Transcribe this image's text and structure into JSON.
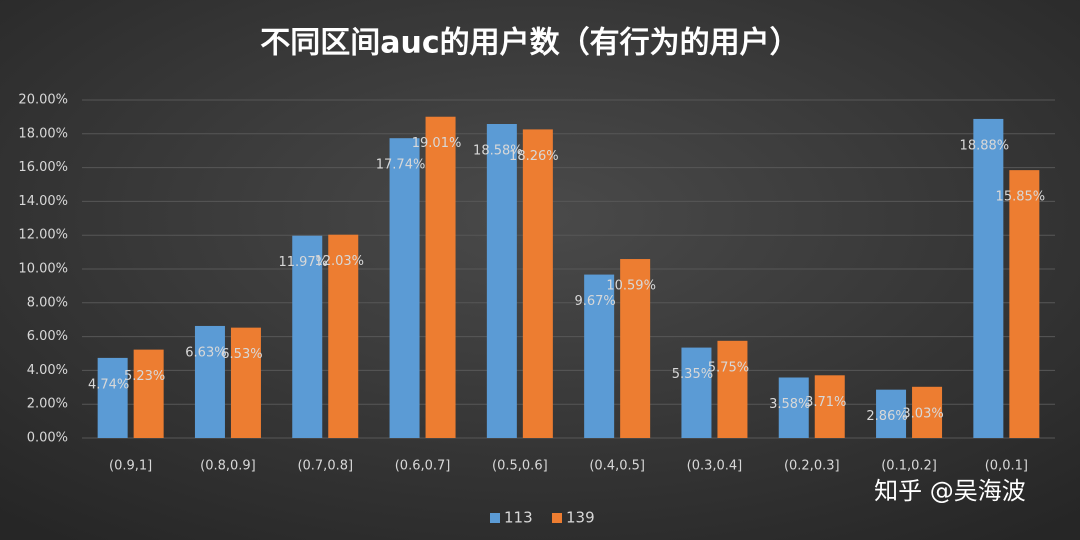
{
  "chart_data": {
    "type": "bar",
    "title": "不同区间auc的用户数（有行为的用户）",
    "categories": [
      "(0.9,1]",
      "(0.8,0.9]",
      "(0.7,0.8]",
      "(0.6,0.7]",
      "(0.5,0.6]",
      "(0.4,0.5]",
      "(0.3,0.4]",
      "(0.2,0.3]",
      "(0.1,0.2]",
      "(0,0.1]"
    ],
    "series": [
      {
        "name": "113",
        "color": "#5b9bd5",
        "values": [
          4.74,
          6.63,
          11.97,
          17.74,
          18.58,
          9.67,
          5.35,
          3.58,
          2.86,
          18.88
        ],
        "value_labels": [
          "4.74%",
          "6.63%",
          "11.97%",
          "17.74%",
          "18.58%",
          "9.67%",
          "5.35%",
          "3.58%",
          "2.86%",
          "18.88%"
        ]
      },
      {
        "name": "139",
        "color": "#ed7d31",
        "values": [
          5.23,
          6.53,
          12.03,
          19.01,
          18.26,
          10.59,
          5.75,
          3.71,
          3.03,
          15.85
        ],
        "value_labels": [
          "5.23%",
          "6.53%",
          "12.03%",
          "19.01%",
          "18.26%",
          "10.59%",
          "5.75%",
          "3.71%",
          "3.03%",
          "15.85%"
        ]
      }
    ],
    "ylim": [
      0,
      20
    ],
    "yticks": [
      {
        "value": 0,
        "label": "0.00%"
      },
      {
        "value": 2,
        "label": "2.00%"
      },
      {
        "value": 4,
        "label": "4.00%"
      },
      {
        "value": 6,
        "label": "6.00%"
      },
      {
        "value": 8,
        "label": "8.00%"
      },
      {
        "value": 10,
        "label": "10.00%"
      },
      {
        "value": 12,
        "label": "12.00%"
      },
      {
        "value": 14,
        "label": "14.00%"
      },
      {
        "value": 16,
        "label": "16.00%"
      },
      {
        "value": 18,
        "label": "18.00%"
      },
      {
        "value": 20,
        "label": "20.00%"
      }
    ],
    "grid": true,
    "legend": "bottom",
    "watermark": "知乎 @吴海波"
  }
}
